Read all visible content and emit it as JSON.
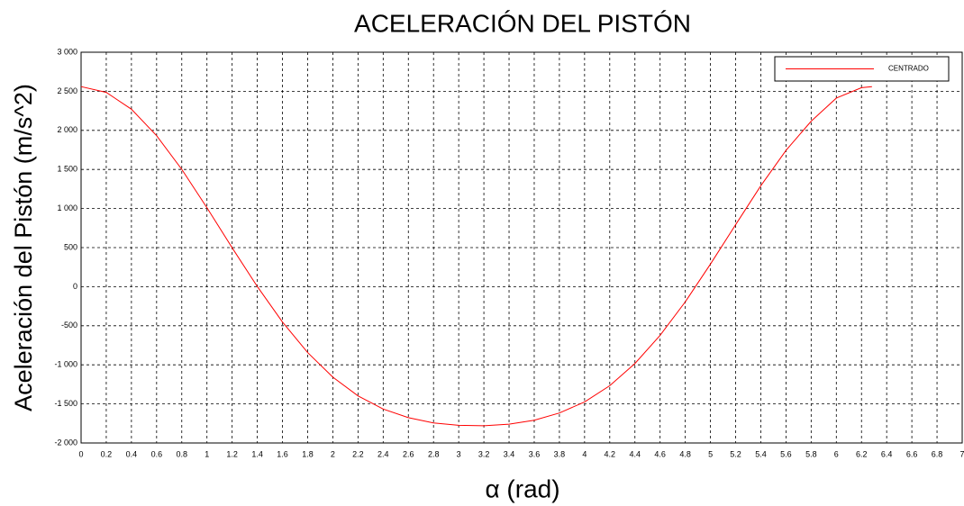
{
  "chart_data": {
    "type": "line",
    "title": "ACELERACIÓN DEL PISTÓN",
    "x_label": "α (rad)",
    "y_label": "Aceleración del Pistón (m/s^2)",
    "x": [
      0,
      0.2,
      0.4,
      0.6,
      0.8,
      1.0,
      1.2,
      1.4,
      1.6,
      1.8,
      2.0,
      2.2,
      2.4,
      2.6,
      2.8,
      3.0,
      3.2,
      3.4,
      3.6,
      3.8,
      4.0,
      4.2,
      4.4,
      4.6,
      4.8,
      5.0,
      5.2,
      5.4,
      5.6,
      5.8,
      6.0,
      6.2,
      6.2832
    ],
    "series": [
      {
        "name": "CENTRADO",
        "color": "#ff0000",
        "values": [
          2560,
          2486,
          2271,
          1932,
          1501,
          1010,
          498,
          2,
          -452,
          -843,
          -1158,
          -1397,
          -1566,
          -1676,
          -1743,
          -1774,
          -1779,
          -1759,
          -1709,
          -1616,
          -1475,
          -1267,
          -983,
          -623,
          -194,
          289,
          793,
          1291,
          1743,
          2117,
          2413,
          2546,
          2560
        ]
      }
    ],
    "xlim": [
      0,
      7
    ],
    "xticks": [
      0,
      0.2,
      0.4,
      0.6,
      0.8,
      1,
      1.2,
      1.4,
      1.6,
      1.8,
      2,
      2.2,
      2.4,
      2.6,
      2.8,
      3,
      3.2,
      3.4,
      3.6,
      3.8,
      4,
      4.2,
      4.4,
      4.6,
      4.8,
      5,
      5.2,
      5.4,
      5.6,
      5.8,
      6,
      6.2,
      6.4,
      6.6,
      6.8,
      7
    ],
    "ylim": [
      -2000,
      3000
    ],
    "yticks": [
      {
        "value": -2000,
        "label": "-2 000"
      },
      {
        "value": -1500,
        "label": "-1 500"
      },
      {
        "value": -1000,
        "label": "-1 000"
      },
      -500,
      0,
      500,
      {
        "value": 1000,
        "label": "1 000"
      },
      {
        "value": 1500,
        "label": "1 500"
      },
      {
        "value": 2000,
        "label": "2 000"
      },
      {
        "value": 2500,
        "label": "2 500"
      },
      {
        "value": 3000,
        "label": "3 000"
      }
    ],
    "grid": true,
    "legend": "upper right"
  }
}
